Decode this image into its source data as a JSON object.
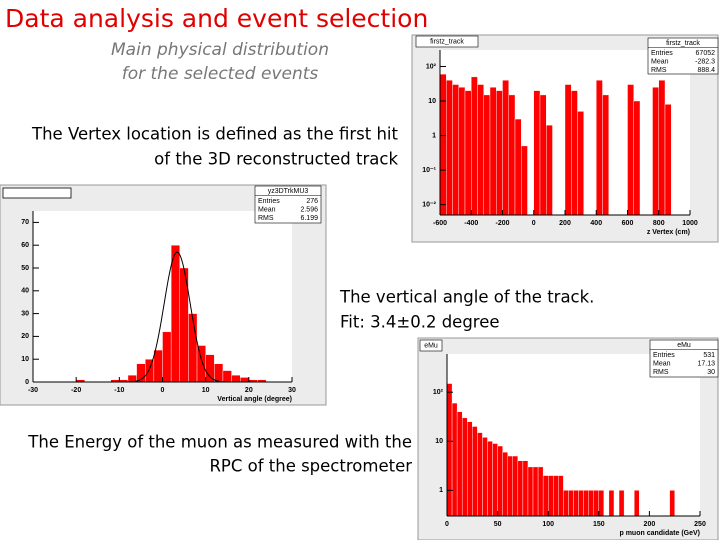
{
  "slide": {
    "title": "Data analysis and event selection",
    "subtitle_lines": [
      "Main physical distribution",
      "for the selected events"
    ],
    "captions": [
      {
        "lines": [
          "The Vertex location is defined as the first hit",
          "of the 3D reconstructed track"
        ]
      },
      {
        "lines": [
          "The vertical angle of the track.",
          "Fit: 3.4±0.2 degree"
        ]
      },
      {
        "lines": [
          "The Energy of the muon as measured with the",
          "RPC of the spectrometer"
        ]
      }
    ]
  },
  "chart_data": [
    {
      "type": "histogram",
      "title": "firstz_track",
      "stats_title": "firstz_track",
      "stats": [
        {
          "name": "Entries",
          "value": 67052
        },
        {
          "name": "Mean",
          "value": -282.3
        },
        {
          "name": "RMS",
          "value": 888.4
        }
      ],
      "xlabel": "z Vertex (cm)",
      "color": "#ff0000",
      "log_y": true,
      "bins": [
        -600,
        -560,
        -520,
        -480,
        -440,
        -400,
        -360,
        -320,
        -280,
        -240,
        -200,
        -160,
        -120,
        -80,
        -40,
        0,
        40,
        80,
        120,
        160,
        200,
        240,
        280,
        320,
        360,
        400,
        440,
        480,
        520,
        560,
        600,
        640,
        680,
        720,
        760,
        800,
        840,
        880,
        920,
        960,
        1000
      ],
      "values": [
        60,
        40,
        30,
        25,
        20,
        50,
        30,
        15,
        25,
        20,
        40,
        15,
        3,
        0.5,
        0,
        20,
        15,
        2,
        0,
        0,
        30,
        20,
        5,
        0,
        0,
        40,
        15,
        0,
        0,
        0,
        30,
        10,
        0,
        0,
        25,
        40,
        8,
        0,
        0,
        0
      ],
      "xlim": [
        -600,
        1000
      ],
      "xticks": [
        -600,
        -400,
        -200,
        0,
        200,
        400,
        600,
        800,
        1000
      ],
      "ylim": [
        0.005,
        300
      ],
      "yticks": [
        {
          "value": 0.01,
          "label": "10⁻²"
        },
        {
          "value": 0.1,
          "label": "10⁻¹"
        },
        1,
        10,
        {
          "value": 100,
          "label": "10²"
        }
      ]
    },
    {
      "type": "histogram",
      "stats_title": "yz3DTrkMU3",
      "stats": [
        {
          "name": "Entries",
          "value": 276
        },
        {
          "name": "Mean",
          "value": 2.596
        },
        {
          "name": "RMS",
          "value": 6.199
        }
      ],
      "xlabel": "Vertical angle (degree)",
      "color": "#ff0000",
      "log_y": false,
      "bins": [
        -30,
        -28,
        -26,
        -24,
        -22,
        -20,
        -18,
        -16,
        -14,
        -12,
        -10,
        -8,
        -6,
        -4,
        -2,
        0,
        2,
        4,
        6,
        8,
        10,
        12,
        14,
        16,
        18,
        20,
        22,
        24,
        26,
        28,
        30
      ],
      "values": [
        0,
        0,
        0,
        0,
        0,
        1,
        0,
        0,
        0,
        1,
        1,
        3,
        8,
        10,
        14,
        22,
        60,
        50,
        30,
        16,
        12,
        8,
        5,
        3,
        2,
        1,
        1,
        0,
        0,
        0
      ],
      "fit": {
        "amplitude": 57,
        "mean": 3.4,
        "sigma": 3.0
      },
      "xlim": [
        -30,
        30
      ],
      "xticks": [
        -30,
        -20,
        -10,
        0,
        10,
        20,
        30
      ],
      "ylim": [
        0,
        75
      ],
      "yticks": [
        0,
        10,
        20,
        30,
        40,
        50,
        60,
        70
      ]
    },
    {
      "type": "histogram",
      "title": "eMu",
      "stats_title": "eMu",
      "stats": [
        {
          "name": "Entries",
          "value": 531
        },
        {
          "name": "Mean",
          "value": 17.13
        },
        {
          "name": "RMS",
          "value": 30.0
        }
      ],
      "xlabel": "p muon candidate (GeV)",
      "color": "#ff0000",
      "log_y": true,
      "bins": [
        0,
        5,
        10,
        15,
        20,
        25,
        30,
        35,
        40,
        45,
        50,
        55,
        60,
        65,
        70,
        75,
        80,
        85,
        90,
        95,
        100,
        105,
        110,
        115,
        120,
        125,
        130,
        135,
        140,
        145,
        150,
        155,
        160,
        165,
        170,
        175,
        180,
        185,
        190,
        195,
        200,
        205,
        210,
        215,
        220,
        225,
        230,
        235,
        240,
        245,
        250
      ],
      "values": [
        150,
        60,
        40,
        30,
        25,
        20,
        15,
        12,
        10,
        9,
        8,
        6,
        5,
        5,
        4,
        4,
        3,
        3,
        3,
        2,
        2,
        2,
        2,
        1,
        1,
        1,
        1,
        1,
        1,
        1,
        1,
        0,
        1,
        0,
        1,
        0,
        0,
        1,
        0,
        0,
        0,
        0,
        0,
        0,
        1,
        0,
        0,
        0,
        0,
        0
      ],
      "xlim": [
        0,
        250
      ],
      "xticks": [
        0,
        50,
        100,
        150,
        200,
        250
      ],
      "ylim": [
        0.3,
        600
      ],
      "yticks": [
        1,
        10,
        {
          "value": 100,
          "label": "10²"
        }
      ]
    }
  ]
}
